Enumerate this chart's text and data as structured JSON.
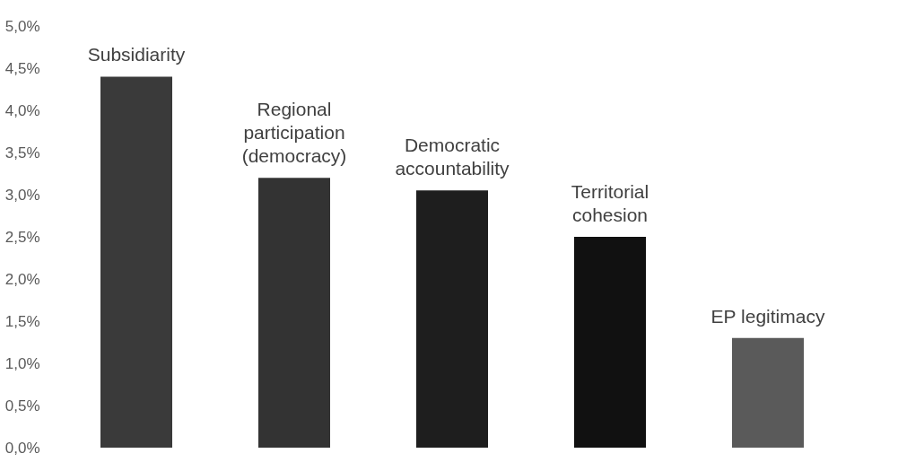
{
  "chart_data": {
    "type": "bar",
    "categories": [
      "Subsidiarity",
      "Regional participation (democracy)",
      "Democratic accountability",
      "Territorial cohesion",
      "EP legitimacy"
    ],
    "values": [
      4.4,
      3.2,
      3.05,
      2.5,
      1.3
    ],
    "colors": [
      "#3a3a3a",
      "#333333",
      "#1e1e1e",
      "#111111",
      "#5a5a5a"
    ],
    "ylim": [
      0,
      5
    ],
    "yticks": [
      {
        "value": 0,
        "label": "0,0%"
      },
      {
        "value": 0.5,
        "label": "0,5%"
      },
      {
        "value": 1,
        "label": "1,0%"
      },
      {
        "value": 1.5,
        "label": "1,5%"
      },
      {
        "value": 2,
        "label": "2,0%"
      },
      {
        "value": 2.5,
        "label": "2,5%"
      },
      {
        "value": 3,
        "label": "3,0%"
      },
      {
        "value": 3.5,
        "label": "3,5%"
      },
      {
        "value": 4,
        "label": "4,0%"
      },
      {
        "value": 4.5,
        "label": "4,5%"
      },
      {
        "value": 5,
        "label": "5,0%"
      }
    ],
    "grid": false,
    "tick_labels": "y"
  }
}
